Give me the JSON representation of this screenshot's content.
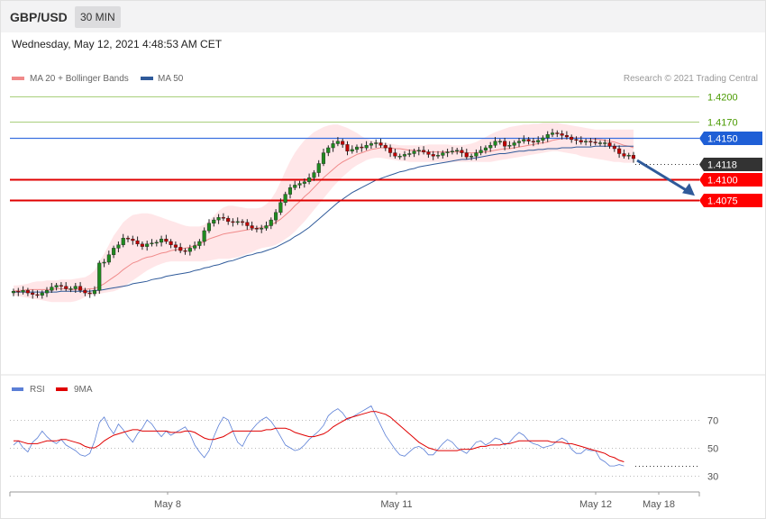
{
  "header": {
    "symbol": "GBP/USD",
    "timeframe": "30 MIN",
    "datetime": "Wednesday, May 12, 2021 4:48:53 AM CET"
  },
  "legend": {
    "ma20": {
      "label": "MA 20 + Bollinger Bands",
      "color": "#f08a8a"
    },
    "ma50": {
      "label": "MA 50",
      "color": "#2f5a9a"
    },
    "credit": "Research © 2021 Trading Central"
  },
  "rsi_legend": {
    "rsi": {
      "label": "RSI",
      "color": "#5b7fd6"
    },
    "ma9": {
      "label": "9MA",
      "color": "#e00000"
    }
  },
  "levels": [
    {
      "value": 1.42,
      "label": "1.4200",
      "style": "green-text",
      "color": "#4a9a00"
    },
    {
      "value": 1.417,
      "label": "1.4170",
      "style": "green-text",
      "color": "#4a9a00"
    },
    {
      "value": 1.415,
      "label": "1.4150",
      "style": "blue-tag",
      "color": "#1f5fd6"
    },
    {
      "value": 1.4118,
      "label": "1.4118",
      "style": "dark-tag",
      "color": "#333333"
    },
    {
      "value": 1.41,
      "label": "1.4100",
      "style": "red-tag",
      "color": "#ff0000"
    },
    {
      "value": 1.4075,
      "label": "1.4075",
      "style": "red-tag",
      "color": "#ff0000"
    }
  ],
  "rsi_axis": [
    {
      "value": 70,
      "label": "70"
    },
    {
      "value": 50,
      "label": "50"
    },
    {
      "value": 30,
      "label": "30"
    }
  ],
  "x_axis": [
    "May 8",
    "May 11",
    "May 12",
    "May 18"
  ],
  "chart_data": {
    "type": "candlestick",
    "price_range": [
      1.3962,
      1.4232
    ],
    "close": [
      1.3965,
      1.3964,
      1.3966,
      1.3963,
      1.3961,
      1.396,
      1.3963,
      1.3966,
      1.397,
      1.3972,
      1.3971,
      1.3968,
      1.3968,
      1.3971,
      1.3966,
      1.3963,
      1.3962,
      1.3966,
      1.3999,
      1.4,
      1.4009,
      1.4017,
      1.4021,
      1.4029,
      1.4028,
      1.4026,
      1.4022,
      1.4019,
      1.4022,
      1.4023,
      1.4024,
      1.4028,
      1.4025,
      1.4021,
      1.4018,
      1.4014,
      1.4013,
      1.4017,
      1.402,
      1.4025,
      1.4038,
      1.4047,
      1.4051,
      1.4054,
      1.4053,
      1.4049,
      1.4048,
      1.4049,
      1.4048,
      1.4044,
      1.4041,
      1.404,
      1.4041,
      1.4044,
      1.4051,
      1.406,
      1.4072,
      1.4082,
      1.409,
      1.4093,
      1.4095,
      1.4097,
      1.4102,
      1.4108,
      1.4119,
      1.4132,
      1.4138,
      1.4143,
      1.4146,
      1.4142,
      1.4134,
      1.4136,
      1.4139,
      1.4138,
      1.4141,
      1.4143,
      1.4144,
      1.4141,
      1.4138,
      1.4132,
      1.4128,
      1.4128,
      1.413,
      1.4131,
      1.4134,
      1.4135,
      1.4133,
      1.413,
      1.4128,
      1.4129,
      1.4132,
      1.4133,
      1.4134,
      1.4135,
      1.4132,
      1.4127,
      1.4128,
      1.4132,
      1.4135,
      1.4138,
      1.4141,
      1.4146,
      1.4146,
      1.414,
      1.4141,
      1.4144,
      1.4146,
      1.4148,
      1.4146,
      1.4145,
      1.4147,
      1.415,
      1.4154,
      1.4156,
      1.4155,
      1.4153,
      1.4151,
      1.4148,
      1.4147,
      1.4145,
      1.4146,
      1.4145,
      1.4144,
      1.4144,
      1.4144,
      1.414,
      1.4137,
      1.4131,
      1.4128,
      1.4129,
      1.4125
    ],
    "ma20": [
      1.3965,
      1.3966,
      1.3966,
      1.3967,
      1.3967,
      1.3967,
      1.3967,
      1.3967,
      1.3967,
      1.3968,
      1.3968,
      1.3968,
      1.3967,
      1.3967,
      1.3968,
      1.3967,
      1.3968,
      1.3968,
      1.3971,
      1.3974,
      1.3978,
      1.3982,
      1.3986,
      1.3991,
      1.3995,
      1.3999,
      1.4001,
      1.4004,
      1.4006,
      1.4007,
      1.4009,
      1.4011,
      1.4012,
      1.4014,
      1.4015,
      1.4016,
      1.4017,
      1.4018,
      1.402,
      1.4022,
      1.4025,
      1.4028,
      1.403,
      1.4032,
      1.4034,
      1.4035,
      1.4036,
      1.4037,
      1.4038,
      1.4039,
      1.404,
      1.4041,
      1.4042,
      1.4043,
      1.4045,
      1.4048,
      1.4052,
      1.4057,
      1.4062,
      1.4068,
      1.4073,
      1.4079,
      1.4084,
      1.409,
      1.4096,
      1.4102,
      1.4107,
      1.4112,
      1.4117,
      1.4121,
      1.4124,
      1.4127,
      1.413,
      1.4132,
      1.4134,
      1.4136,
      1.4137,
      1.4138,
      1.4138,
      1.4138,
      1.4137,
      1.4137,
      1.4136,
      1.4135,
      1.4135,
      1.4134,
      1.4133,
      1.4133,
      1.4133,
      1.4133,
      1.4133,
      1.4133,
      1.4133,
      1.4133,
      1.4133,
      1.4132,
      1.4132,
      1.4132,
      1.4133,
      1.4133,
      1.4134,
      1.4135,
      1.4136,
      1.4137,
      1.4137,
      1.4138,
      1.4139,
      1.414,
      1.4141,
      1.4142,
      1.4143,
      1.4144,
      1.4145,
      1.4147,
      1.4148,
      1.4149,
      1.4149,
      1.415,
      1.415,
      1.415,
      1.4149,
      1.4149,
      1.4148,
      1.4148,
      1.4147,
      1.4146,
      1.4145,
      1.4143,
      1.4141,
      1.414,
      1.4138
    ],
    "bb_upper": [
      1.3972,
      1.3972,
      1.3973,
      1.3974,
      1.3976,
      1.3977,
      1.3977,
      1.3978,
      1.3978,
      1.3978,
      1.3979,
      1.3979,
      1.3979,
      1.398,
      1.3981,
      1.3982,
      1.3985,
      1.399,
      1.4001,
      1.401,
      1.4021,
      1.4032,
      1.404,
      1.4048,
      1.4053,
      1.4057,
      1.4058,
      1.4059,
      1.4059,
      1.4058,
      1.4056,
      1.4054,
      1.4052,
      1.405,
      1.4048,
      1.4046,
      1.4044,
      1.4043,
      1.4043,
      1.4043,
      1.4045,
      1.405,
      1.4056,
      1.4062,
      1.4066,
      1.4068,
      1.4068,
      1.4067,
      1.4066,
      1.4065,
      1.4065,
      1.4065,
      1.4066,
      1.407,
      1.4076,
      1.4085,
      1.4097,
      1.411,
      1.4122,
      1.4132,
      1.414,
      1.4147,
      1.4152,
      1.4157,
      1.416,
      1.4163,
      1.4165,
      1.4166,
      1.4166,
      1.4164,
      1.4162,
      1.4159,
      1.4156,
      1.4152,
      1.4149,
      1.4147,
      1.4146,
      1.4145,
      1.4144,
      1.4143,
      1.4142,
      1.4141,
      1.4141,
      1.4141,
      1.4141,
      1.4141,
      1.4141,
      1.4142,
      1.4142,
      1.4142,
      1.4142,
      1.4142,
      1.4141,
      1.4141,
      1.4141,
      1.4142,
      1.4143,
      1.4145,
      1.4148,
      1.4151,
      1.4154,
      1.4157,
      1.4159,
      1.4161,
      1.4163,
      1.4164,
      1.4165,
      1.4166,
      1.4166,
      1.4167,
      1.4167,
      1.4168,
      1.4168,
      1.4168,
      1.4168,
      1.4167,
      1.4166,
      1.4165,
      1.4164,
      1.4163,
      1.4162,
      1.4161,
      1.416,
      1.416,
      1.416,
      1.416,
      1.416,
      1.416,
      1.416,
      1.416,
      1.416
    ],
    "bb_lower": [
      1.396,
      1.3959,
      1.3958,
      1.3957,
      1.3956,
      1.3955,
      1.3954,
      1.3953,
      1.3952,
      1.3952,
      1.3952,
      1.3952,
      1.3952,
      1.3953,
      1.3955,
      1.3958,
      1.396,
      1.3961,
      1.3962,
      1.3963,
      1.3964,
      1.3965,
      1.3967,
      1.397,
      1.3974,
      1.3978,
      1.3982,
      1.3986,
      1.399,
      1.3993,
      1.3996,
      1.3998,
      1.4,
      1.4001,
      1.4001,
      1.4001,
      1.4001,
      1.4001,
      1.4001,
      1.4001,
      1.4001,
      1.4002,
      1.4003,
      1.4004,
      1.4004,
      1.4004,
      1.4005,
      1.4006,
      1.4008,
      1.401,
      1.4012,
      1.4015,
      1.4017,
      1.4018,
      1.4019,
      1.4021,
      1.4024,
      1.4028,
      1.4032,
      1.4037,
      1.4043,
      1.4049,
      1.4056,
      1.4063,
      1.407,
      1.4077,
      1.4084,
      1.4091,
      1.4097,
      1.4103,
      1.4108,
      1.4113,
      1.4117,
      1.412,
      1.4123,
      1.4125,
      1.4126,
      1.4126,
      1.4125,
      1.4124,
      1.4123,
      1.4122,
      1.4122,
      1.4121,
      1.4121,
      1.4121,
      1.4121,
      1.4121,
      1.4121,
      1.4121,
      1.4121,
      1.4121,
      1.4121,
      1.4121,
      1.4121,
      1.4121,
      1.4121,
      1.4121,
      1.4121,
      1.4121,
      1.4121,
      1.4122,
      1.4123,
      1.4124,
      1.4125,
      1.4126,
      1.4127,
      1.4128,
      1.4129,
      1.413,
      1.4131,
      1.4132,
      1.4133,
      1.4134,
      1.4134,
      1.4133,
      1.4132,
      1.4131,
      1.413,
      1.4128,
      1.4127,
      1.4126,
      1.4125,
      1.4124,
      1.4123,
      1.4122,
      1.4121,
      1.4121,
      1.412,
      1.412,
      1.412
    ],
    "ma50": [
      1.3964,
      1.3964,
      1.3964,
      1.3964,
      1.3964,
      1.3964,
      1.3964,
      1.3964,
      1.3964,
      1.3964,
      1.3965,
      1.3965,
      1.3965,
      1.3965,
      1.3965,
      1.3965,
      1.3965,
      1.3966,
      1.3966,
      1.3967,
      1.3968,
      1.3969,
      1.397,
      1.3971,
      1.3972,
      1.3974,
      1.3975,
      1.3976,
      1.3977,
      1.3979,
      1.398,
      1.3981,
      1.3983,
      1.3984,
      1.3985,
      1.3986,
      1.3987,
      1.3988,
      1.399,
      1.3991,
      1.3993,
      1.3994,
      1.3996,
      1.3997,
      1.3999,
      1.4001,
      1.4002,
      1.4004,
      1.4006,
      1.4008,
      1.4009,
      1.4011,
      1.4012,
      1.4014,
      1.4016,
      1.4018,
      1.4021,
      1.4024,
      1.4027,
      1.4031,
      1.4034,
      1.4038,
      1.4042,
      1.4047,
      1.4052,
      1.4057,
      1.4062,
      1.4067,
      1.4072,
      1.4076,
      1.408,
      1.4084,
      1.4087,
      1.409,
      1.4093,
      1.4096,
      1.4099,
      1.4101,
      1.4103,
      1.4105,
      1.4107,
      1.4109,
      1.411,
      1.4112,
      1.4113,
      1.4115,
      1.4116,
      1.4117,
      1.4118,
      1.4119,
      1.412,
      1.4121,
      1.4122,
      1.4123,
      1.4124,
      1.4124,
      1.4125,
      1.4126,
      1.4127,
      1.4128,
      1.4129,
      1.413,
      1.4131,
      1.4131,
      1.4132,
      1.4133,
      1.4134,
      1.4134,
      1.4135,
      1.4135,
      1.4136,
      1.4136,
      1.4137,
      1.4137,
      1.4137,
      1.4138,
      1.4138,
      1.4138,
      1.4139,
      1.4139,
      1.4139,
      1.4139,
      1.414,
      1.414,
      1.414,
      1.414,
      1.414,
      1.414,
      1.414,
      1.414,
      1.414
    ],
    "projection": {
      "from": 1.4125,
      "to": 1.4078
    },
    "rsi": [
      52,
      55,
      50,
      47,
      54,
      57,
      62,
      58,
      55,
      53,
      56,
      52,
      50,
      48,
      45,
      44,
      46,
      55,
      68,
      72,
      65,
      60,
      67,
      63,
      58,
      54,
      60,
      64,
      70,
      67,
      62,
      58,
      62,
      59,
      61,
      63,
      65,
      60,
      52,
      47,
      43,
      48,
      58,
      66,
      72,
      70,
      62,
      54,
      51,
      58,
      63,
      67,
      70,
      72,
      69,
      64,
      58,
      52,
      50,
      48,
      49,
      52,
      56,
      59,
      62,
      66,
      73,
      76,
      78,
      75,
      70,
      72,
      74,
      76,
      78,
      80,
      73,
      66,
      59,
      54,
      49,
      45,
      44,
      47,
      50,
      51,
      49,
      45,
      45,
      49,
      53,
      56,
      54,
      50,
      48,
      46,
      50,
      54,
      55,
      52,
      54,
      57,
      56,
      52,
      54,
      58,
      61,
      59,
      55,
      53,
      52,
      50,
      51,
      52,
      55,
      57,
      55,
      49,
      46,
      46,
      49,
      48,
      48,
      42,
      40,
      37,
      37,
      38,
      37
    ],
    "rsi_ma9": [
      55,
      55,
      54,
      53,
      53,
      53,
      54,
      55,
      55,
      55,
      56,
      56,
      55,
      54,
      53,
      51,
      50,
      50,
      52,
      55,
      57,
      59,
      60,
      61,
      62,
      63,
      63,
      62,
      62,
      62,
      62,
      62,
      62,
      61,
      61,
      61,
      62,
      62,
      61,
      59,
      57,
      56,
      56,
      57,
      58,
      60,
      62,
      62,
      62,
      62,
      62,
      62,
      62,
      63,
      63,
      64,
      64,
      64,
      63,
      61,
      60,
      59,
      58,
      58,
      59,
      60,
      62,
      65,
      67,
      69,
      71,
      72,
      73,
      74,
      75,
      76,
      76,
      75,
      74,
      72,
      69,
      66,
      63,
      60,
      57,
      54,
      52,
      50,
      49,
      48,
      48,
      48,
      48,
      48,
      49,
      49,
      49,
      50,
      51,
      51,
      52,
      52,
      52,
      53,
      53,
      54,
      55,
      55,
      55,
      55,
      55,
      55,
      55,
      54,
      54,
      54,
      53,
      53,
      52,
      51,
      50,
      49,
      48,
      47,
      46,
      44,
      43,
      41,
      40
    ]
  }
}
